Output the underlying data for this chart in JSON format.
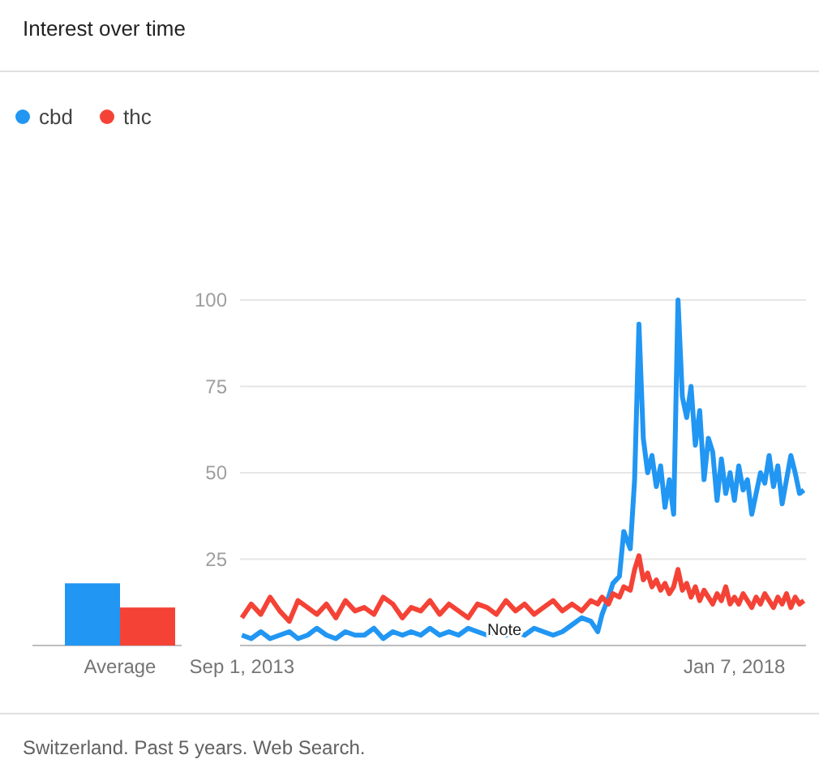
{
  "chart_data": [
    {
      "type": "bar",
      "title": "Interest over time",
      "categories": [
        "Average"
      ],
      "ylim": [
        0,
        100
      ],
      "tick_labels": "x",
      "series": [
        {
          "color": "#2196f3",
          "values": [
            18
          ]
        },
        {
          "color": "#f44336",
          "values": [
            11
          ]
        }
      ]
    },
    {
      "type": "line",
      "legend": "top left",
      "grid": "y",
      "xlim": [
        "2013-08-26",
        "2018-08-26"
      ],
      "ylim": [
        0,
        100
      ],
      "yticks": [
        25,
        50,
        75,
        100
      ],
      "xticks": [
        {
          "value": "2013-09-01",
          "label": "Sep 1, 2013"
        },
        {
          "value": "2018-01-07",
          "label": "Jan 7, 2018"
        }
      ],
      "annotations": [
        {
          "text": "Note",
          "x": "2015-12-27",
          "y": 5
        },
        "Switzerland. Past 5 years. Web Search."
      ],
      "x": [
        "2013-09-01",
        "2013-10-01",
        "2013-11-01",
        "2013-12-01",
        "2014-01-01",
        "2014-02-01",
        "2014-03-01",
        "2014-04-01",
        "2014-05-01",
        "2014-06-01",
        "2014-07-01",
        "2014-08-01",
        "2014-09-01",
        "2014-10-01",
        "2014-11-01",
        "2014-12-01",
        "2015-01-01",
        "2015-02-01",
        "2015-03-01",
        "2015-04-01",
        "2015-05-01",
        "2015-06-01",
        "2015-07-01",
        "2015-08-01",
        "2015-09-01",
        "2015-10-01",
        "2015-11-01",
        "2015-12-01",
        "2016-01-01",
        "2016-02-01",
        "2016-03-01",
        "2016-04-01",
        "2016-05-01",
        "2016-06-01",
        "2016-07-01",
        "2016-08-01",
        "2016-09-01",
        "2016-10-01",
        "2016-10-23",
        "2016-11-06",
        "2016-11-27",
        "2016-12-11",
        "2017-01-01",
        "2017-01-15",
        "2017-02-05",
        "2017-02-19",
        "2017-03-05",
        "2017-03-19",
        "2017-04-02",
        "2017-04-16",
        "2017-04-30",
        "2017-05-14",
        "2017-05-28",
        "2017-06-11",
        "2017-06-25",
        "2017-07-09",
        "2017-07-23",
        "2017-08-06",
        "2017-08-20",
        "2017-09-03",
        "2017-09-17",
        "2017-10-01",
        "2017-10-15",
        "2017-10-29",
        "2017-11-12",
        "2017-11-26",
        "2017-12-10",
        "2017-12-24",
        "2018-01-07",
        "2018-01-21",
        "2018-02-04",
        "2018-02-18",
        "2018-03-04",
        "2018-03-18",
        "2018-04-01",
        "2018-04-15",
        "2018-04-29",
        "2018-05-13",
        "2018-05-27",
        "2018-06-10",
        "2018-06-24",
        "2018-07-08",
        "2018-07-22",
        "2018-08-05",
        "2018-08-19"
      ],
      "series": [
        {
          "name": "cbd",
          "color": "#2196f3",
          "values": [
            3,
            2,
            4,
            2,
            3,
            4,
            2,
            3,
            5,
            3,
            2,
            4,
            3,
            3,
            5,
            2,
            4,
            3,
            4,
            3,
            5,
            3,
            4,
            3,
            5,
            4,
            3,
            4,
            3,
            4,
            3,
            5,
            4,
            3,
            4,
            6,
            8,
            7,
            4,
            9,
            14,
            18,
            20,
            33,
            28,
            48,
            93,
            60,
            50,
            55,
            46,
            52,
            40,
            48,
            38,
            100,
            72,
            66,
            75,
            58,
            68,
            48,
            60,
            56,
            42,
            54,
            44,
            50,
            42,
            52,
            45,
            48,
            38,
            44,
            50,
            47,
            55,
            46,
            52,
            41,
            48,
            55,
            50,
            44,
            45
          ]
        },
        {
          "name": "thc",
          "color": "#f44336",
          "values": [
            8,
            12,
            9,
            14,
            10,
            7,
            13,
            11,
            9,
            12,
            8,
            13,
            10,
            11,
            9,
            14,
            12,
            8,
            11,
            10,
            13,
            9,
            12,
            10,
            8,
            12,
            11,
            9,
            13,
            10,
            12,
            9,
            11,
            13,
            10,
            12,
            10,
            13,
            12,
            14,
            12,
            15,
            14,
            17,
            16,
            22,
            26,
            19,
            21,
            17,
            19,
            16,
            18,
            15,
            17,
            22,
            16,
            18,
            14,
            17,
            13,
            16,
            14,
            12,
            15,
            13,
            17,
            12,
            14,
            12,
            15,
            13,
            11,
            14,
            12,
            15,
            13,
            11,
            14,
            12,
            15,
            11,
            14,
            12,
            13
          ]
        }
      ]
    }
  ]
}
